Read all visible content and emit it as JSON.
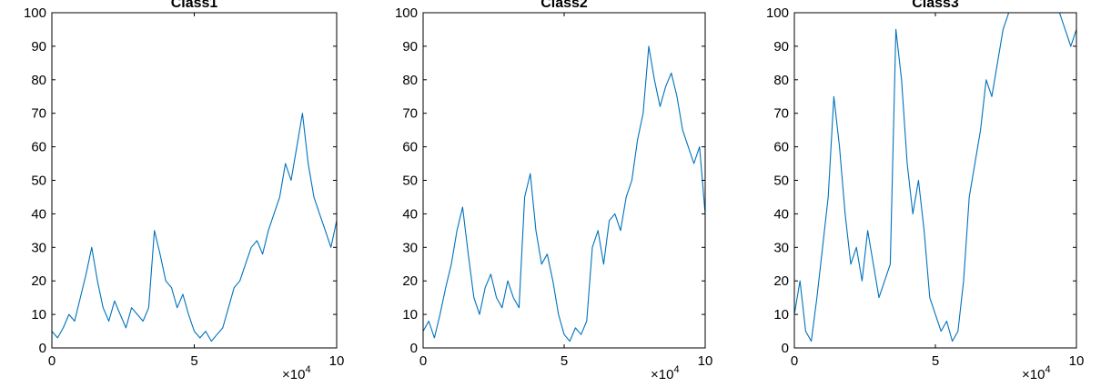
{
  "chart_data": [
    {
      "type": "line",
      "title": "Class1",
      "xlabel": "",
      "ylabel": "",
      "xlim": [
        0,
        100000
      ],
      "ylim": [
        0,
        100
      ],
      "x_ticks": [
        0,
        50000,
        100000
      ],
      "x_tick_labels": [
        "0",
        "5",
        "10"
      ],
      "x_exponent_label": "×10",
      "x_exponent": "4",
      "y_ticks": [
        0,
        10,
        20,
        30,
        40,
        50,
        60,
        70,
        80,
        90,
        100
      ],
      "y_tick_labels": [
        "0",
        "10",
        "20",
        "30",
        "40",
        "50",
        "60",
        "70",
        "80",
        "90",
        "100"
      ],
      "grid": false,
      "series": [
        {
          "color": "#0072BD",
          "x": [
            0,
            2000,
            4000,
            6000,
            8000,
            10000,
            12000,
            14000,
            16000,
            18000,
            20000,
            22000,
            24000,
            26000,
            28000,
            30000,
            32000,
            34000,
            36000,
            38000,
            40000,
            42000,
            44000,
            46000,
            48000,
            50000,
            52000,
            54000,
            56000,
            58000,
            60000,
            62000,
            64000,
            66000,
            68000,
            70000,
            72000,
            74000,
            76000,
            78000,
            80000,
            82000,
            84000,
            86000,
            88000,
            90000,
            92000,
            94000,
            96000,
            98000,
            100000
          ],
          "y": [
            5,
            3,
            6,
            10,
            8,
            15,
            22,
            30,
            20,
            12,
            8,
            14,
            10,
            6,
            12,
            10,
            8,
            12,
            35,
            28,
            20,
            18,
            12,
            16,
            10,
            5,
            3,
            5,
            2,
            4,
            6,
            12,
            18,
            20,
            25,
            30,
            32,
            28,
            35,
            40,
            45,
            55,
            50,
            60,
            70,
            55,
            45,
            40,
            35,
            30,
            38
          ]
        }
      ]
    },
    {
      "type": "line",
      "title": "Class2",
      "xlabel": "",
      "ylabel": "",
      "xlim": [
        0,
        100000
      ],
      "ylim": [
        0,
        100
      ],
      "x_ticks": [
        0,
        50000,
        100000
      ],
      "x_tick_labels": [
        "0",
        "5",
        "10"
      ],
      "x_exponent_label": "×10",
      "x_exponent": "4",
      "y_ticks": [
        0,
        10,
        20,
        30,
        40,
        50,
        60,
        70,
        80,
        90,
        100
      ],
      "y_tick_labels": [
        "0",
        "10",
        "20",
        "30",
        "40",
        "50",
        "60",
        "70",
        "80",
        "90",
        "100"
      ],
      "grid": false,
      "series": [
        {
          "color": "#0072BD",
          "x": [
            0,
            2000,
            4000,
            6000,
            8000,
            10000,
            12000,
            14000,
            16000,
            18000,
            20000,
            22000,
            24000,
            26000,
            28000,
            30000,
            32000,
            34000,
            36000,
            38000,
            40000,
            42000,
            44000,
            46000,
            48000,
            50000,
            52000,
            54000,
            56000,
            58000,
            60000,
            62000,
            64000,
            66000,
            68000,
            70000,
            72000,
            74000,
            76000,
            78000,
            80000,
            82000,
            84000,
            86000,
            88000,
            90000,
            92000,
            94000,
            96000,
            98000,
            100000
          ],
          "y": [
            5,
            8,
            3,
            10,
            18,
            25,
            35,
            42,
            28,
            15,
            10,
            18,
            22,
            15,
            12,
            20,
            15,
            12,
            45,
            52,
            35,
            25,
            28,
            20,
            10,
            4,
            2,
            6,
            4,
            8,
            30,
            35,
            25,
            38,
            40,
            35,
            45,
            50,
            62,
            70,
            90,
            80,
            72,
            78,
            82,
            75,
            65,
            60,
            55,
            60,
            40
          ]
        }
      ]
    },
    {
      "type": "line",
      "title": "Class3",
      "xlabel": "",
      "ylabel": "",
      "xlim": [
        0,
        100000
      ],
      "ylim": [
        0,
        100
      ],
      "x_ticks": [
        0,
        50000,
        100000
      ],
      "x_tick_labels": [
        "0",
        "5",
        "10"
      ],
      "x_exponent_label": "×10",
      "x_exponent": "4",
      "y_ticks": [
        0,
        10,
        20,
        30,
        40,
        50,
        60,
        70,
        80,
        90,
        100
      ],
      "y_tick_labels": [
        "0",
        "10",
        "20",
        "30",
        "40",
        "50",
        "60",
        "70",
        "80",
        "90",
        "100"
      ],
      "grid": false,
      "series": [
        {
          "color": "#0072BD",
          "x": [
            0,
            2000,
            4000,
            6000,
            8000,
            10000,
            12000,
            14000,
            16000,
            18000,
            20000,
            22000,
            24000,
            26000,
            28000,
            30000,
            32000,
            34000,
            36000,
            38000,
            40000,
            42000,
            44000,
            46000,
            48000,
            50000,
            52000,
            54000,
            56000,
            58000,
            60000,
            62000,
            64000,
            66000,
            68000,
            70000,
            72000,
            74000,
            76000,
            78000,
            80000,
            82000,
            84000,
            86000,
            88000,
            90000,
            92000,
            94000,
            96000,
            98000,
            100000
          ],
          "y": [
            10,
            20,
            5,
            2,
            15,
            30,
            45,
            75,
            60,
            40,
            25,
            30,
            20,
            35,
            25,
            15,
            20,
            25,
            95,
            80,
            55,
            40,
            50,
            35,
            15,
            10,
            5,
            8,
            2,
            5,
            20,
            45,
            55,
            65,
            80,
            75,
            85,
            95,
            100,
            100,
            100,
            100,
            100,
            100,
            100,
            100,
            100,
            100,
            95,
            90,
            95
          ]
        }
      ]
    }
  ]
}
